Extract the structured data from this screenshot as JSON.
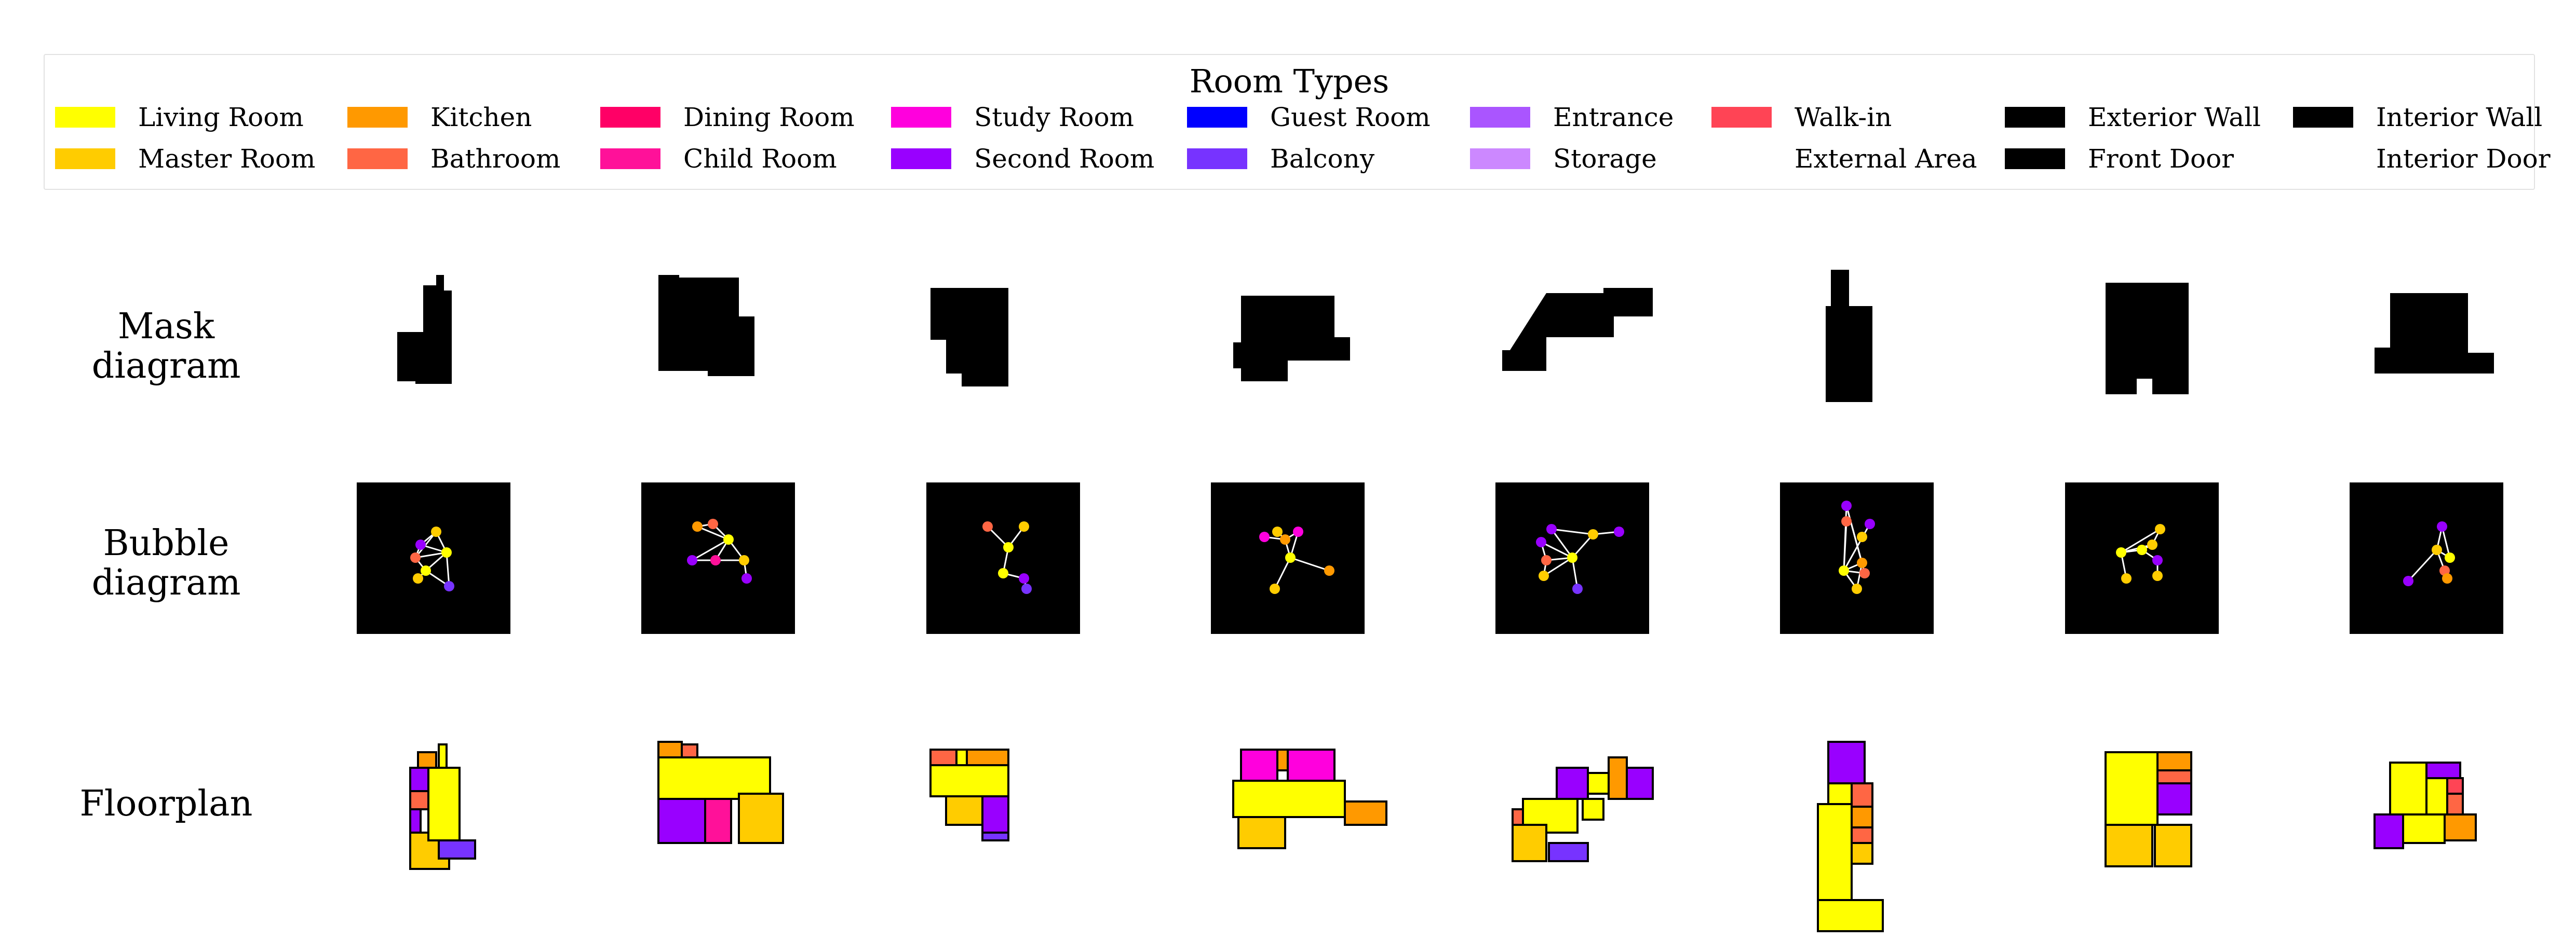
{
  "legend": {
    "title": "Room Types",
    "items": [
      {
        "label": "Living Room",
        "color": "#ffff00"
      },
      {
        "label": "Master Room",
        "color": "#ffcc00"
      },
      {
        "label": "Kitchen",
        "color": "#ff9900"
      },
      {
        "label": "Bathroom",
        "color": "#ff6644"
      },
      {
        "label": "Dining Room",
        "color": "#ff0066"
      },
      {
        "label": "Child Room",
        "color": "#ff1199"
      },
      {
        "label": "Study Room",
        "color": "#ff00dd"
      },
      {
        "label": "Second Room",
        "color": "#9900ff"
      },
      {
        "label": "Guest Room",
        "color": "#0000ff"
      },
      {
        "label": "Balcony",
        "color": "#7733ff"
      },
      {
        "label": "Entrance",
        "color": "#aa55ff"
      },
      {
        "label": "Storage",
        "color": "#cc88ff"
      },
      {
        "label": "Walk-in",
        "color": "#ff4455"
      },
      {
        "label": "External Area",
        "color": "#ffffff"
      },
      {
        "label": "Exterior Wall",
        "color": "#000000"
      },
      {
        "label": "Front Door",
        "color": "#000000"
      },
      {
        "label": "Interior Wall",
        "color": "#000000"
      },
      {
        "label": "Interior Door",
        "color": "#ffffff"
      }
    ]
  },
  "rows": {
    "mask": {
      "line1": "Mask",
      "line2": "diagram"
    },
    "bubble": {
      "line1": "Bubble",
      "line2": "diagram"
    },
    "floorplan": {
      "line1": "Floorplan"
    }
  },
  "samples_count": 8
}
